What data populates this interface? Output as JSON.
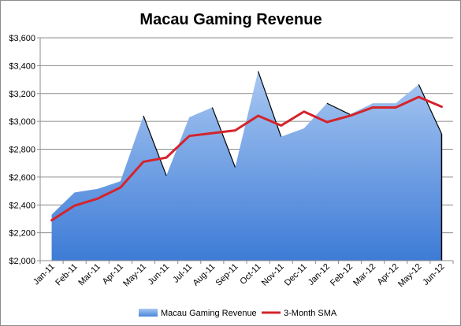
{
  "chart_data": {
    "type": "area",
    "title": "Macau Gaming Revenue",
    "xlabel": "",
    "ylabel": "",
    "categories": [
      "Jan-11",
      "Feb-11",
      "Mar-11",
      "Apr-11",
      "May-11",
      "Jun-11",
      "Jul-11",
      "Aug-11",
      "Sep-11",
      "Oct-11",
      "Nov-11",
      "Dec-11",
      "Jan-12",
      "Feb-12",
      "Mar-12",
      "Apr-12",
      "May-12",
      "Jun-12"
    ],
    "ylim": [
      2000,
      3600
    ],
    "yticks": [
      2000,
      2200,
      2400,
      2600,
      2800,
      3000,
      3200,
      3400,
      3600
    ],
    "ytick_labels": [
      "$2,000",
      "$2,200",
      "$2,400",
      "$2,600",
      "$2,800",
      "$3,000",
      "$3,200",
      "$3,400",
      "$3,600"
    ],
    "grid": true,
    "legend_position": "bottom",
    "series": [
      {
        "name": "Macau Gaming Revenue",
        "type": "area",
        "color": "#6f9fe0",
        "values": [
          2330,
          2490,
          2515,
          2570,
          3040,
          2610,
          3030,
          3100,
          2670,
          3360,
          2890,
          2950,
          3130,
          3050,
          3130,
          3130,
          3265,
          2910
        ]
      },
      {
        "name": "3-Month SMA",
        "type": "line",
        "color": "#d4242c",
        "values": [
          2290,
          2395,
          2445,
          2525,
          2710,
          2740,
          2895,
          2915,
          2935,
          3040,
          2970,
          3070,
          2995,
          3040,
          3100,
          3100,
          3175,
          3105
        ]
      }
    ]
  }
}
